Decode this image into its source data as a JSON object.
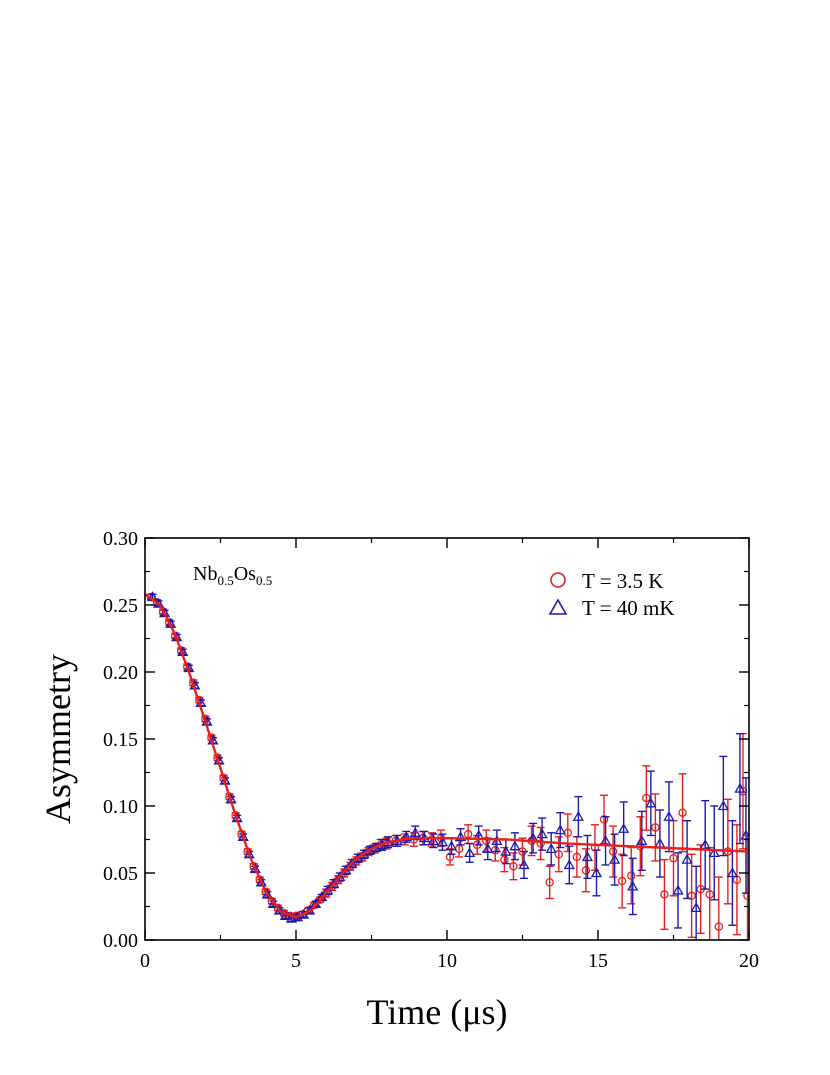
{
  "chart_data": {
    "type": "scatter",
    "sample_label": {
      "base1": "Nb",
      "sub1": "0.5",
      "base2": "Os",
      "sub2": "0.5"
    },
    "xlabel": "Time (μs)",
    "ylabel": "Asymmetry",
    "xlim": [
      0,
      20
    ],
    "ylim": [
      0,
      0.3
    ],
    "xticks": [
      "0",
      "5",
      "10",
      "15",
      "20"
    ],
    "yticks": [
      "0.00",
      "0.05",
      "0.10",
      "0.15",
      "0.20",
      "0.25",
      "0.30"
    ],
    "legend_position": "top-right",
    "grid": false,
    "colors": {
      "red": "#e8201c",
      "blue": "#1b1bb0",
      "fit": "#e8201c"
    },
    "series": [
      {
        "name": "T = 3.5 K",
        "marker": "circle",
        "color": "#e8201c",
        "points": [
          [
            0.2,
            0.256
          ],
          [
            0.4,
            0.252
          ],
          [
            0.6,
            0.245
          ],
          [
            0.8,
            0.237
          ],
          [
            1.0,
            0.227
          ],
          [
            1.2,
            0.216
          ],
          [
            1.4,
            0.204
          ],
          [
            1.6,
            0.192
          ],
          [
            1.8,
            0.179
          ],
          [
            2.0,
            0.165
          ],
          [
            2.2,
            0.151
          ],
          [
            2.4,
            0.136
          ],
          [
            2.6,
            0.121
          ],
          [
            2.8,
            0.107
          ],
          [
            3.0,
            0.093
          ],
          [
            3.2,
            0.079
          ],
          [
            3.4,
            0.066
          ],
          [
            3.6,
            0.055
          ],
          [
            3.8,
            0.045
          ],
          [
            4.0,
            0.036
          ],
          [
            4.2,
            0.029
          ],
          [
            4.4,
            0.024
          ],
          [
            4.6,
            0.02
          ],
          [
            4.8,
            0.018
          ],
          [
            5.0,
            0.018
          ],
          [
            5.2,
            0.019
          ],
          [
            5.4,
            0.022
          ],
          [
            5.6,
            0.026
          ],
          [
            5.8,
            0.03
          ],
          [
            6.0,
            0.035
          ],
          [
            6.2,
            0.04
          ],
          [
            6.4,
            0.045
          ],
          [
            6.6,
            0.05
          ],
          [
            6.8,
            0.055
          ],
          [
            7.0,
            0.059
          ],
          [
            7.2,
            0.062
          ],
          [
            7.4,
            0.066
          ],
          [
            7.6,
            0.068
          ],
          [
            7.8,
            0.071
          ],
          [
            8.0,
            0.072
          ],
          [
            8.3,
            0.074
          ],
          [
            8.6,
            0.075
          ],
          [
            8.9,
            0.075
          ],
          [
            9.2,
            0.076
          ],
          [
            9.5,
            0.075
          ],
          [
            9.8,
            0.076
          ],
          [
            10.1,
            0.062
          ],
          [
            10.4,
            0.068
          ],
          [
            10.7,
            0.079
          ],
          [
            11.0,
            0.071
          ],
          [
            11.3,
            0.074
          ],
          [
            11.6,
            0.067
          ],
          [
            11.9,
            0.06
          ],
          [
            12.2,
            0.055
          ],
          [
            12.5,
            0.066
          ],
          [
            12.8,
            0.074
          ],
          [
            13.1,
            0.072
          ],
          [
            13.4,
            0.043
          ],
          [
            13.7,
            0.064
          ],
          [
            14.0,
            0.08
          ],
          [
            14.3,
            0.062
          ],
          [
            14.6,
            0.052
          ],
          [
            14.9,
            0.069
          ],
          [
            15.2,
            0.09
          ],
          [
            15.5,
            0.066
          ],
          [
            15.8,
            0.044
          ],
          [
            16.1,
            0.048
          ],
          [
            16.4,
            0.07
          ],
          [
            16.6,
            0.106
          ],
          [
            16.9,
            0.084
          ],
          [
            17.2,
            0.034
          ],
          [
            17.5,
            0.061
          ],
          [
            17.8,
            0.095
          ],
          [
            18.1,
            0.033
          ],
          [
            18.4,
            0.038
          ],
          [
            18.7,
            0.034
          ],
          [
            19.0,
            0.01
          ],
          [
            19.3,
            0.066
          ],
          [
            19.6,
            0.045
          ],
          [
            19.8,
            0.111
          ],
          [
            19.95,
            0.033
          ]
        ],
        "errors": [
          0.002,
          0.002,
          0.002,
          0.002,
          0.002,
          0.002,
          0.002,
          0.002,
          0.002,
          0.002,
          0.002,
          0.002,
          0.002,
          0.002,
          0.002,
          0.002,
          0.002,
          0.002,
          0.002,
          0.002,
          0.002,
          0.002,
          0.002,
          0.002,
          0.002,
          0.002,
          0.002,
          0.002,
          0.002,
          0.003,
          0.003,
          0.003,
          0.003,
          0.003,
          0.003,
          0.003,
          0.003,
          0.003,
          0.004,
          0.004,
          0.004,
          0.004,
          0.005,
          0.005,
          0.005,
          0.006,
          0.006,
          0.006,
          0.007,
          0.007,
          0.008,
          0.008,
          0.009,
          0.01,
          0.01,
          0.011,
          0.012,
          0.012,
          0.013,
          0.014,
          0.015,
          0.016,
          0.017,
          0.018,
          0.019,
          0.02,
          0.021,
          0.022,
          0.024,
          0.025,
          0.026,
          0.028,
          0.029,
          0.031,
          0.033,
          0.035,
          0.037,
          0.039,
          0.041,
          0.043,
          0.045
        ]
      },
      {
        "name": "T = 40 mK",
        "marker": "triangle",
        "color": "#1b1bb0",
        "points": [
          [
            0.25,
            0.256
          ],
          [
            0.45,
            0.251
          ],
          [
            0.65,
            0.244
          ],
          [
            0.85,
            0.236
          ],
          [
            1.05,
            0.226
          ],
          [
            1.25,
            0.215
          ],
          [
            1.45,
            0.203
          ],
          [
            1.65,
            0.19
          ],
          [
            1.85,
            0.177
          ],
          [
            2.05,
            0.163
          ],
          [
            2.25,
            0.149
          ],
          [
            2.45,
            0.134
          ],
          [
            2.65,
            0.119
          ],
          [
            2.85,
            0.105
          ],
          [
            3.05,
            0.091
          ],
          [
            3.25,
            0.077
          ],
          [
            3.45,
            0.064
          ],
          [
            3.65,
            0.053
          ],
          [
            3.85,
            0.043
          ],
          [
            4.05,
            0.034
          ],
          [
            4.25,
            0.027
          ],
          [
            4.45,
            0.022
          ],
          [
            4.65,
            0.018
          ],
          [
            4.85,
            0.016
          ],
          [
            5.05,
            0.017
          ],
          [
            5.25,
            0.019
          ],
          [
            5.45,
            0.022
          ],
          [
            5.65,
            0.027
          ],
          [
            5.85,
            0.032
          ],
          [
            6.05,
            0.037
          ],
          [
            6.25,
            0.042
          ],
          [
            6.45,
            0.047
          ],
          [
            6.65,
            0.052
          ],
          [
            6.85,
            0.057
          ],
          [
            7.05,
            0.061
          ],
          [
            7.25,
            0.064
          ],
          [
            7.45,
            0.067
          ],
          [
            7.65,
            0.069
          ],
          [
            7.85,
            0.071
          ],
          [
            8.05,
            0.073
          ],
          [
            8.35,
            0.074
          ],
          [
            8.65,
            0.077
          ],
          [
            8.95,
            0.08
          ],
          [
            9.25,
            0.076
          ],
          [
            9.55,
            0.074
          ],
          [
            9.85,
            0.073
          ],
          [
            10.15,
            0.07
          ],
          [
            10.45,
            0.077
          ],
          [
            10.75,
            0.065
          ],
          [
            11.05,
            0.078
          ],
          [
            11.35,
            0.068
          ],
          [
            11.65,
            0.074
          ],
          [
            11.95,
            0.066
          ],
          [
            12.25,
            0.07
          ],
          [
            12.55,
            0.056
          ],
          [
            12.85,
            0.076
          ],
          [
            13.15,
            0.079
          ],
          [
            13.45,
            0.068
          ],
          [
            13.75,
            0.082
          ],
          [
            14.05,
            0.056
          ],
          [
            14.35,
            0.092
          ],
          [
            14.65,
            0.062
          ],
          [
            14.95,
            0.05
          ],
          [
            15.25,
            0.074
          ],
          [
            15.55,
            0.06
          ],
          [
            15.85,
            0.083
          ],
          [
            16.15,
            0.04
          ],
          [
            16.45,
            0.074
          ],
          [
            16.75,
            0.102
          ],
          [
            17.05,
            0.072
          ],
          [
            17.35,
            0.092
          ],
          [
            17.65,
            0.037
          ],
          [
            17.95,
            0.06
          ],
          [
            18.25,
            0.024
          ],
          [
            18.55,
            0.071
          ],
          [
            18.85,
            0.065
          ],
          [
            19.15,
            0.1
          ],
          [
            19.45,
            0.05
          ],
          [
            19.7,
            0.113
          ],
          [
            19.9,
            0.078
          ]
        ],
        "errors": [
          0.002,
          0.002,
          0.002,
          0.002,
          0.002,
          0.002,
          0.002,
          0.002,
          0.002,
          0.002,
          0.002,
          0.002,
          0.002,
          0.002,
          0.002,
          0.002,
          0.002,
          0.002,
          0.002,
          0.002,
          0.002,
          0.002,
          0.002,
          0.002,
          0.002,
          0.002,
          0.002,
          0.002,
          0.002,
          0.003,
          0.003,
          0.003,
          0.003,
          0.003,
          0.003,
          0.003,
          0.003,
          0.003,
          0.004,
          0.004,
          0.004,
          0.004,
          0.005,
          0.005,
          0.005,
          0.006,
          0.006,
          0.006,
          0.007,
          0.007,
          0.008,
          0.008,
          0.009,
          0.01,
          0.01,
          0.011,
          0.012,
          0.012,
          0.013,
          0.014,
          0.015,
          0.016,
          0.017,
          0.018,
          0.019,
          0.02,
          0.021,
          0.022,
          0.024,
          0.025,
          0.026,
          0.028,
          0.029,
          0.031,
          0.033,
          0.035,
          0.037,
          0.039,
          0.041,
          0.043
        ]
      }
    ],
    "fit_curve": {
      "color": "#e8201c",
      "points": [
        [
          0,
          0.258
        ],
        [
          0.5,
          0.25
        ],
        [
          1.0,
          0.228
        ],
        [
          1.5,
          0.197
        ],
        [
          2.0,
          0.163
        ],
        [
          2.5,
          0.128
        ],
        [
          3.0,
          0.093
        ],
        [
          3.5,
          0.061
        ],
        [
          4.0,
          0.036
        ],
        [
          4.5,
          0.021
        ],
        [
          5.0,
          0.017
        ],
        [
          5.5,
          0.022
        ],
        [
          6.0,
          0.035
        ],
        [
          6.5,
          0.049
        ],
        [
          7.0,
          0.061
        ],
        [
          7.5,
          0.068
        ],
        [
          8.0,
          0.073
        ],
        [
          8.5,
          0.075
        ],
        [
          9.0,
          0.076
        ],
        [
          10.0,
          0.076
        ],
        [
          12.0,
          0.075
        ],
        [
          14.0,
          0.072
        ],
        [
          16.0,
          0.07
        ],
        [
          18.0,
          0.068
        ],
        [
          20.0,
          0.066
        ]
      ]
    }
  }
}
